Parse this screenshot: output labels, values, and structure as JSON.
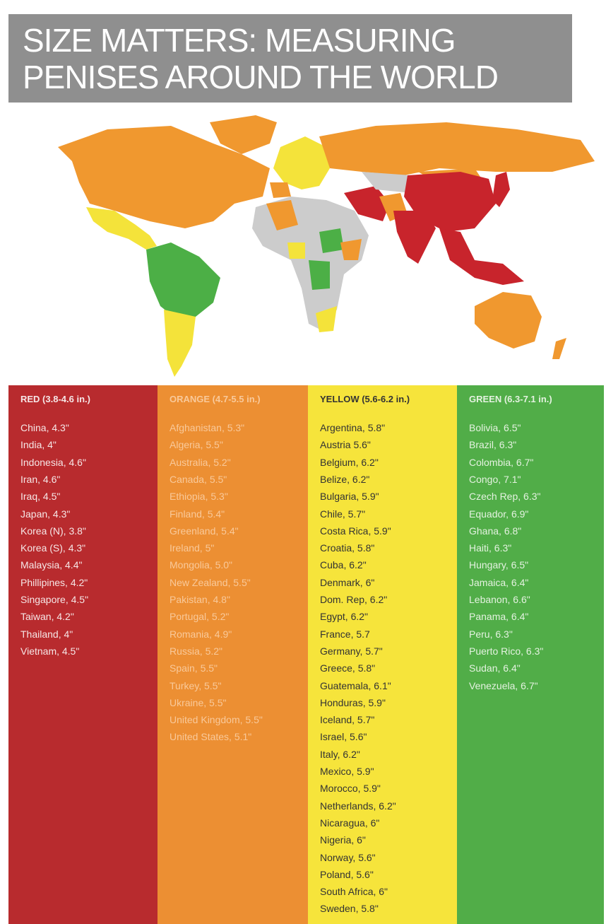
{
  "header": {
    "title_lines": [
      "SIZE MATTERS: MEASURING",
      "PENISES AROUND THE WORLD"
    ]
  },
  "columns": [
    {
      "heading": "RED (3.8-4.6 in.)",
      "items": [
        "China, 4.3\"",
        "India, 4\"",
        "Indonesia, 4.6\"",
        "Iran, 4.6\"",
        "Iraq, 4.5\"",
        "Japan, 4.3\"",
        "Korea (N), 3.8\"",
        "Korea (S), 4.3\"",
        "Malaysia, 4.4\"",
        "Phillipines, 4.2\"",
        "Singapore, 4.5\"",
        "Taiwan, 4.2\"",
        "Thailand, 4\"",
        "Vietnam, 4.5\""
      ]
    },
    {
      "heading": "ORANGE (4.7-5.5 in.)",
      "items": [
        "Afghanistan, 5.3\"",
        "Algeria, 5.5\"",
        "Australia, 5.2\"",
        "Canada, 5.5\"",
        "Ethiopia, 5.3\"",
        "Finland, 5.4\"",
        "Greenland, 5.4\"",
        "Ireland, 5\"",
        "Mongolia, 5.0\"",
        "New Zealand, 5.5\"",
        "Pakistan, 4.8\"",
        "Portugal, 5.2\"",
        "Romania, 4.9\"",
        "Russia, 5.2\"",
        "Spain, 5.5\"",
        "Turkey, 5.5\"",
        "Ukraine, 5.5\"",
        "United Kingdom, 5.5\"",
        "United States, 5.1\""
      ]
    },
    {
      "heading": "YELLOW (5.6-6.2 in.)",
      "items": [
        "Argentina, 5.8\"",
        "Austria 5.6\"",
        "Belgium, 6.2\"",
        "Belize, 6.2\"",
        "Bulgaria, 5.9\"",
        "Chile, 5.7\"",
        "Costa Rica, 5.9\"",
        "Croatia, 5.8\"",
        "Cuba, 6.2\"",
        "Denmark, 6\"",
        "Dom. Rep, 6.2\"",
        "Egypt, 6.2\"",
        "France, 5.7",
        "Germany, 5.7\"",
        "Greece, 5.8\"",
        "Guatemala, 6.1\"",
        "Honduras, 5.9\"",
        "Iceland, 5.7\"",
        "Israel, 5.6\"",
        "Italy, 6.2\"",
        "Mexico, 5.9\"",
        "Morocco, 5.9\"",
        "Netherlands, 6.2\"",
        "Nicaragua, 6\"",
        "Nigeria, 6\"",
        "Norway, 5.6\"",
        "Poland, 5.6\"",
        "South Africa, 6\"",
        "Sweden, 5.8\""
      ]
    },
    {
      "heading": "GREEN (6.3-7.1 in.)",
      "items": [
        "Bolivia, 6.5\"",
        "Brazil, 6.3\"",
        "Colombia, 6.7\"",
        "Congo, 7.1\"",
        "Czech Rep, 6.3\"",
        "Equador, 6.9\"",
        "Ghana, 6.8\"",
        "Haiti, 6.3\"",
        "Hungary, 6.5\"",
        "Jamaica, 6.4\"",
        "Lebanon, 6.6\"",
        "Panama, 6.4\"",
        "Peru, 6.3\"",
        "Puerto Rico, 6.3\"",
        "Sudan, 6.4\"",
        "Venezuela, 6.7\""
      ]
    }
  ]
}
